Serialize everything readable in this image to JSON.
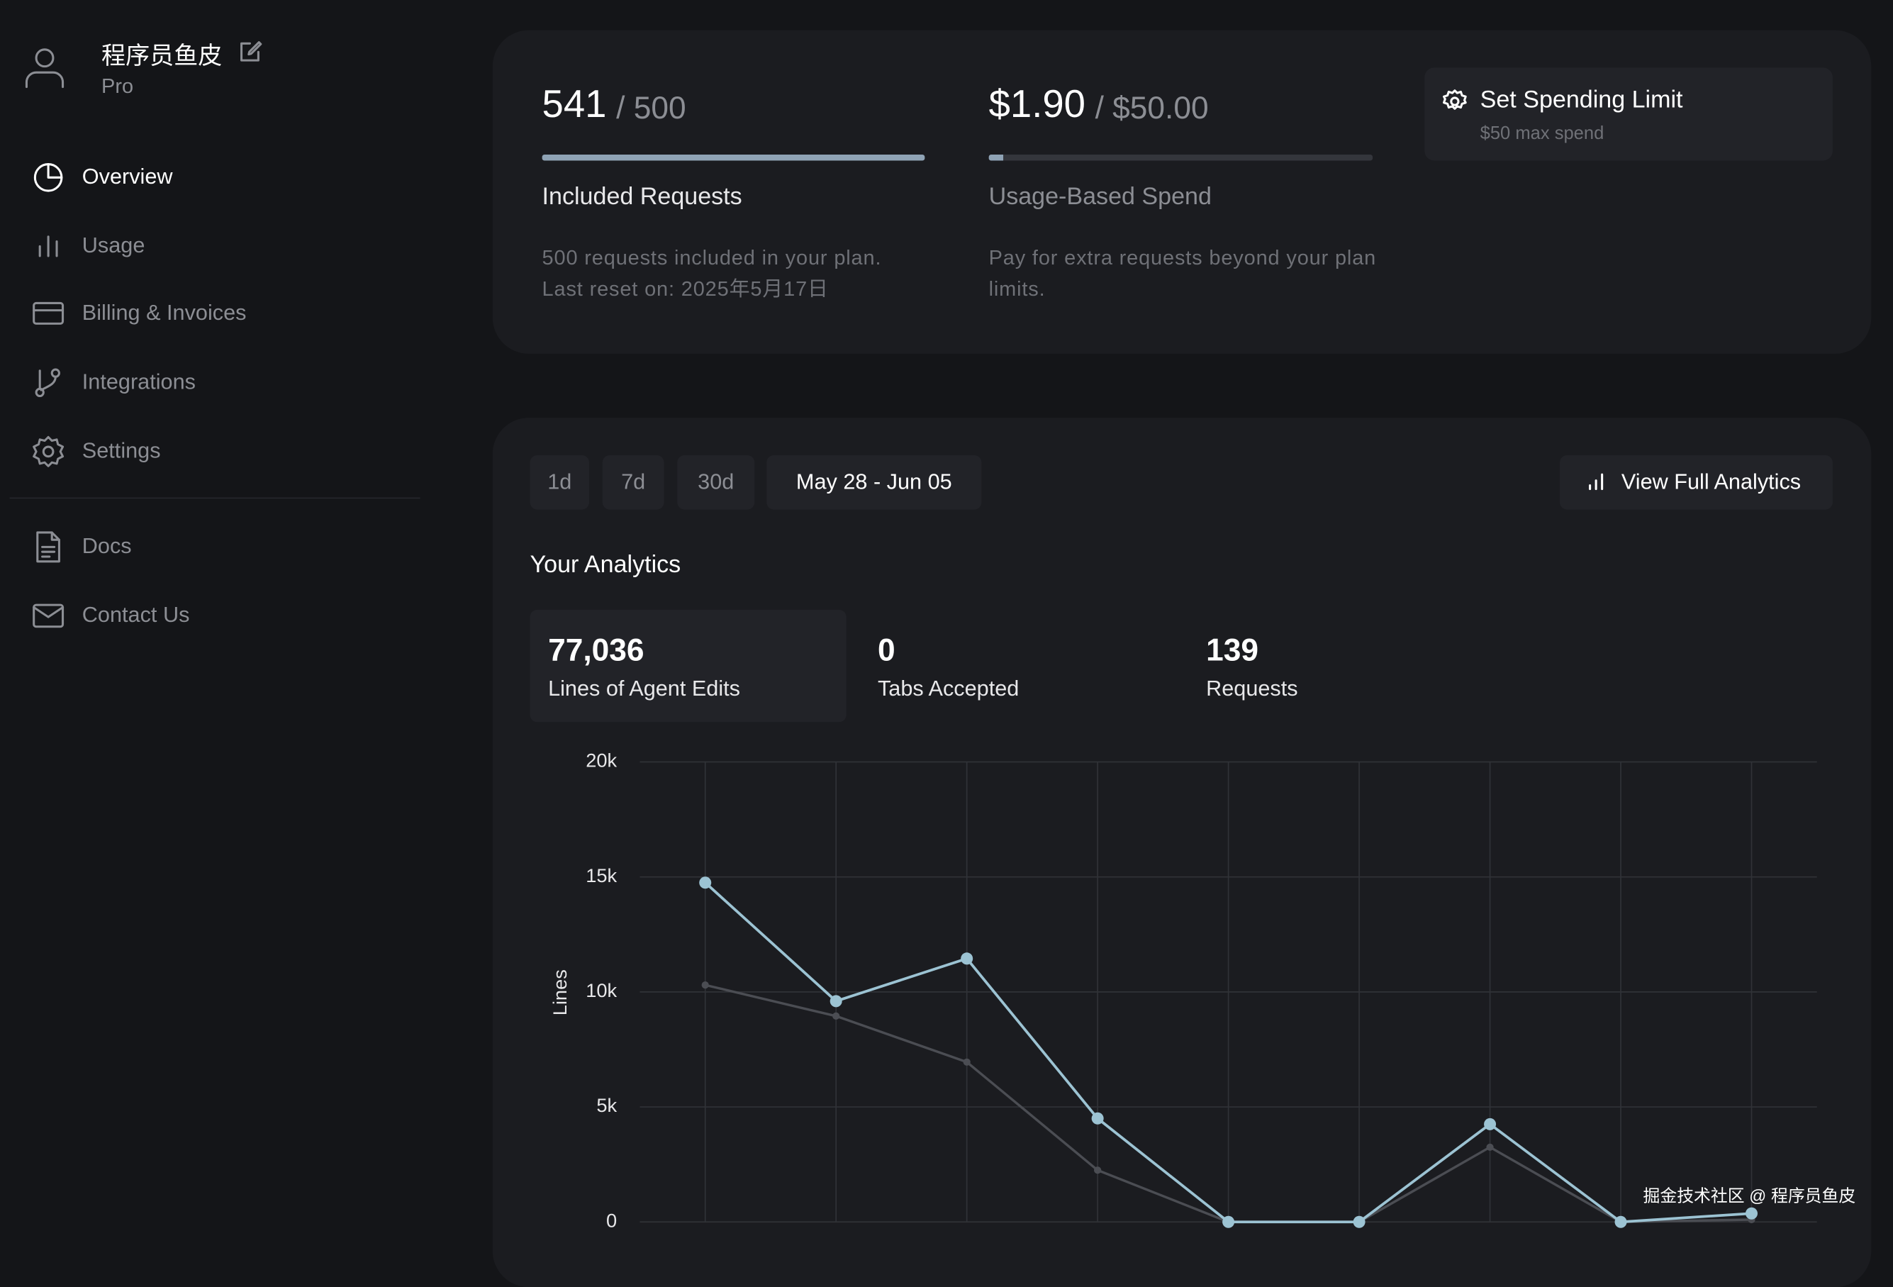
{
  "sidebar": {
    "user": {
      "name": "程序员鱼皮",
      "plan": "Pro"
    },
    "nav": [
      "Overview",
      "Usage",
      "Billing & Invoices",
      "Integrations",
      "Settings"
    ],
    "links": [
      "Docs",
      "Contact Us"
    ]
  },
  "usage": {
    "included": {
      "used": 541,
      "limit": {
        "value": 500,
        "label": "/ 500"
      },
      "title": "Included Requests",
      "description": "500 requests included in your plan. Last reset on: 2025年5月17日"
    },
    "spend": {
      "used": {
        "value": 1.9,
        "label": "$1.90"
      },
      "limit": {
        "value": 50,
        "label": "/ $50.00"
      },
      "title": "Usage-Based Spend",
      "description": "Pay for extra requests beyond your plan limits."
    },
    "spending_limit": {
      "button": "Set Spending Limit",
      "note": "$50 max spend"
    }
  },
  "analytics": {
    "ranges": [
      "1d",
      "7d",
      "30d"
    ],
    "date_range": "May 28 - Jun 05",
    "full_link": "View Full Analytics",
    "title": "Your Analytics",
    "stats": [
      {
        "value": "77,036",
        "label": "Lines of Agent Edits"
      },
      {
        "value": "0",
        "label": "Tabs Accepted"
      },
      {
        "value": "139",
        "label": "Requests"
      }
    ],
    "chart_data": {
      "type": "line",
      "y_label": "Lines",
      "categories": [
        null,
        null,
        null,
        null,
        null,
        null,
        null,
        null,
        null
      ],
      "series": [
        {
          "color": "#9cc3d3",
          "values": [
            14750,
            9600,
            11450,
            4500,
            0,
            0,
            4250,
            0,
            370
          ]
        },
        {
          "color": "#4b4d53",
          "values": [
            10300,
            8950,
            6950,
            2250,
            0,
            0,
            3250,
            0,
            100
          ]
        }
      ],
      "ylim": [
        0,
        20000
      ],
      "yticks": [
        0,
        {
          "value": 5000,
          "label": "5k"
        },
        {
          "value": 10000,
          "label": "10k"
        },
        {
          "value": 15000,
          "label": "15k"
        },
        {
          "value": 20000,
          "label": "20k"
        }
      ],
      "grid": true
    }
  },
  "watermark": "掘金技术社区 @ 程序员鱼皮"
}
